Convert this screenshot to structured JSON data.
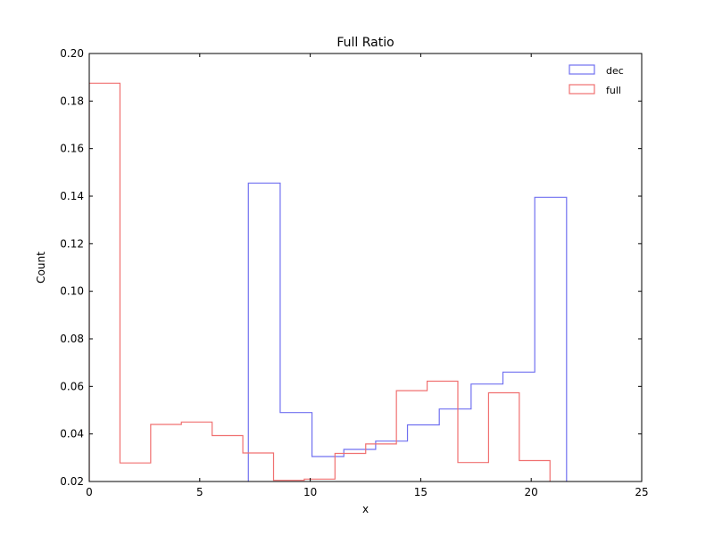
{
  "chart_data": {
    "type": "histogram-step",
    "title": "Full Ratio",
    "xlabel": "x",
    "ylabel": "Count",
    "xlim": [
      0,
      25
    ],
    "ylim": [
      0.02,
      0.2
    ],
    "xticks": [
      0,
      5,
      10,
      15,
      20,
      25
    ],
    "xtick_labels": [
      "0",
      "5",
      "10",
      "15",
      "20",
      "25"
    ],
    "yticks": [
      0.02,
      0.04,
      0.06,
      0.08,
      0.1,
      0.12,
      0.14,
      0.16,
      0.18,
      0.2
    ],
    "ytick_labels": [
      "0.02",
      "0.04",
      "0.06",
      "0.08",
      "0.10",
      "0.12",
      "0.14",
      "0.16",
      "0.18",
      "0.20"
    ],
    "grid": false,
    "legend_position": "top-right",
    "series": [
      {
        "name": "dec",
        "color": "#7070f0",
        "bin_edges": [
          7.2,
          8.64,
          10.08,
          11.52,
          12.96,
          14.4,
          15.84,
          17.28,
          18.72,
          20.16,
          21.6
        ],
        "values": [
          0.1455,
          0.049,
          0.0305,
          0.0335,
          0.037,
          0.0438,
          0.0505,
          0.061,
          0.066,
          0.1395
        ]
      },
      {
        "name": "full",
        "color": "#f07070",
        "bin_edges": [
          0.0,
          1.39,
          2.78,
          4.17,
          5.56,
          6.95,
          8.34,
          9.73,
          11.12,
          12.51,
          13.9,
          15.29,
          16.68,
          18.07,
          19.46,
          20.85
        ],
        "values": [
          0.1875,
          0.0278,
          0.044,
          0.045,
          0.0393,
          0.032,
          0.0205,
          0.021,
          0.0318,
          0.0358,
          0.0582,
          0.0622,
          0.028,
          0.0573,
          0.0288
        ]
      }
    ]
  }
}
